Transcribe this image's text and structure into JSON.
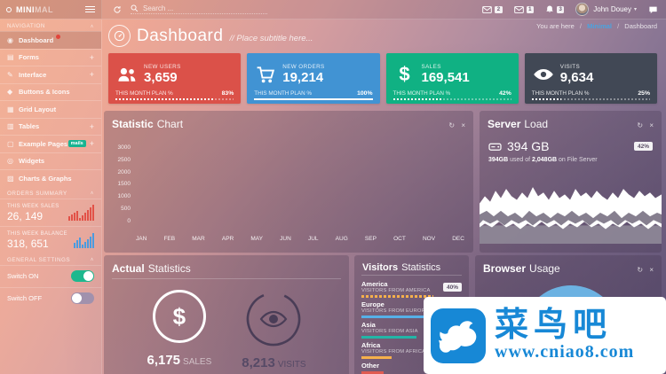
{
  "icons": {
    "chevron_up": "∧",
    "plus": "+",
    "caret_down": "▾",
    "refresh": "↻",
    "close": "×",
    "dollar": "$"
  },
  "colors": {
    "accent_red": "#db5149",
    "accent_blue": "#4193d3",
    "accent_green": "#10b183",
    "accent_dark": "#414855",
    "link_blue": "#4aa3e0",
    "badge_green": "#17b491",
    "toggle_on": "#1db88e",
    "donut_blue": "#6cb2e2",
    "watermark_blue": "#1788d6"
  },
  "topbar": {
    "logo_bold": "MINI",
    "logo_light": "MAL",
    "search_placeholder": "Search ...",
    "mail1_badge": "2",
    "mail2_badge": "1",
    "bell_badge": "3",
    "user_name": "John Douey"
  },
  "breadcrumb": {
    "prefix": "You are here",
    "sep": "/",
    "brand": "Minimal",
    "page": "Dashboard"
  },
  "sidebar": {
    "nav_title": "NAVIGATION",
    "items": [
      {
        "label": "Dashboard",
        "glyph": "◉"
      },
      {
        "label": "Forms",
        "glyph": "▤",
        "plus": "+"
      },
      {
        "label": "Interface",
        "glyph": "✎",
        "plus": "+"
      },
      {
        "label": "Buttons & Icons",
        "glyph": "◆"
      },
      {
        "label": "Grid Layout",
        "glyph": "▦"
      },
      {
        "label": "Tables",
        "glyph": "▥",
        "plus": "+"
      },
      {
        "label": "Example Pages",
        "glyph": "▢",
        "badge": "mails",
        "plus": "+"
      },
      {
        "label": "Widgets",
        "glyph": "◎"
      },
      {
        "label": "Charts & Graphs",
        "glyph": "▨"
      }
    ],
    "orders_title": "ORDERS SUMMARY",
    "sales_label": "THIS WEEK SALES",
    "sales_value": "26, 149",
    "balance_label": "THIS WEEK BALANCE",
    "balance_value": "318, 651",
    "settings_title": "GENERAL SETTINGS",
    "switch_on_label": "Switch ON",
    "switch_off_label": "Switch OFF",
    "spark_sales": [
      5,
      7,
      9,
      11,
      3,
      6,
      9,
      12,
      15,
      18
    ],
    "spark_balance": [
      6,
      9,
      12,
      4,
      7,
      10,
      13,
      17
    ]
  },
  "page_header": {
    "title": "Dashboard",
    "subtitle": "// Place subtitle here..."
  },
  "cards": [
    {
      "label": "NEW USERS",
      "value": "3,659",
      "plan_label": "THIS MONTH PLAN %",
      "percent": "83%",
      "fill_style": "width:83%"
    },
    {
      "label": "NEW ORDERS",
      "value": "19,214",
      "plan_label": "THIS MONTH PLAN %",
      "percent": "100%",
      "fill_style": "width:100%"
    },
    {
      "label": "SALES",
      "value": "169,541",
      "plan_label": "THIS MONTH PLAN %",
      "percent": "42%",
      "fill_style": "width:42%"
    },
    {
      "label": "VISITS",
      "value": "9,634",
      "plan_label": "THIS MONTH PLAN %",
      "percent": "25%",
      "fill_style": "width:25%"
    }
  ],
  "statistic_chart": {
    "title_bold": "Statistic",
    "title_light": "Chart",
    "chart_data": {
      "type": "line",
      "categories": [
        "JAN",
        "FEB",
        "MAR",
        "APR",
        "MAY",
        "JUN",
        "JUL",
        "AUG",
        "SEP",
        "OCT",
        "NOV",
        "DEC"
      ],
      "y_ticks": [
        "3000",
        "2500",
        "2000",
        "1500",
        "1000",
        "500",
        "0"
      ],
      "ylim": [
        0,
        3000
      ],
      "grid": false,
      "series": [],
      "note": "axes and tick labels visible, no plotted series visible"
    }
  },
  "server_load": {
    "title_bold": "Server",
    "title_light": "Load",
    "storage": "394 GB",
    "percent": "42%",
    "used": "394GB",
    "used_mid": " used of ",
    "total": "2,048GB",
    "used_tail": " on File Server",
    "chart_data": {
      "type": "area",
      "note": "white mirrored waveform band, decorative"
    }
  },
  "actual_stats": {
    "title_bold": "Actual",
    "title_light": "Statistics",
    "sales_value": "6,175",
    "sales_label": "SALES",
    "visits_value": "8,213",
    "visits_label": "VISITS"
  },
  "visitors": {
    "title_bold": "Visitors",
    "title_light": "Statistics",
    "items": [
      {
        "name": "America",
        "sub": "VISITORS FROM AMERICA",
        "percent": "40%",
        "bar_style": "width:72%;background:repeating-linear-gradient(90deg,#f5b04c 0 3px,rgba(0,0,0,0) 3px 5px)"
      },
      {
        "name": "Europe",
        "sub": "VISITORS FROM EUROPE",
        "bar_style": "width:78%;background:#56b0e8"
      },
      {
        "name": "Asia",
        "sub": "VISITORS FROM ASIA",
        "bar_style": "width:55%;background:#23b5a7"
      },
      {
        "name": "Africa",
        "sub": "VISITORS FROM AFRICA",
        "bar_style": "width:30%;background:#f5b04c"
      },
      {
        "name": "Other",
        "sub": "",
        "bar_style": "width:22%;background:#e05b52"
      }
    ]
  },
  "browser_usage": {
    "title_bold": "Browser",
    "title_light": "Usage"
  },
  "watermark": {
    "text": "菜鸟吧",
    "url": "www.cniao8.com"
  }
}
